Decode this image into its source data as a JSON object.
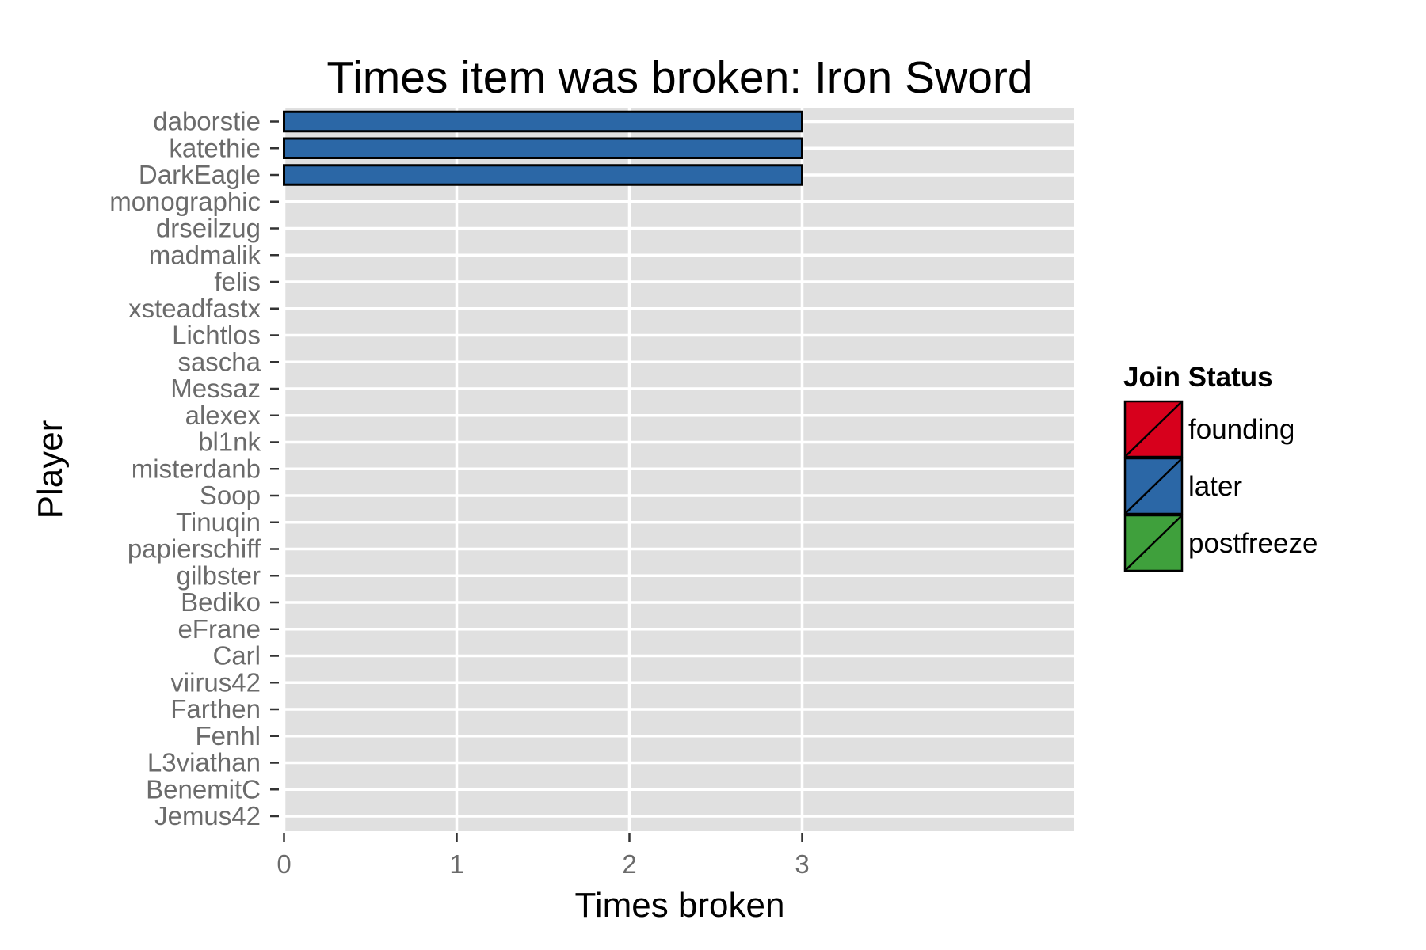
{
  "chart_data": {
    "type": "bar",
    "orientation": "horizontal",
    "title": "Times item was broken: Iron Sword",
    "xlabel": "Times broken",
    "ylabel": "Player",
    "xlim": [
      0,
      4.6
    ],
    "xticks": [
      0,
      1,
      2,
      3
    ],
    "grid": true,
    "categories": [
      "daborstie",
      "katethie",
      "DarkEagle",
      "monographic",
      "drseilzug",
      "madmalik",
      "felis",
      "xsteadfastx",
      "Lichtlos",
      "sascha",
      "Messaz",
      "alexex",
      "bl1nk",
      "misterdanb",
      "Soop",
      "Tinuqin",
      "papierschiff",
      "gilbster",
      "Bediko",
      "eFrane",
      "Carl",
      "viirus42",
      "Farthen",
      "Fenhl",
      "L3viathan",
      "BenemitC",
      "Jemus42"
    ],
    "values": [
      3,
      3,
      3,
      0,
      0,
      0,
      0,
      0,
      0,
      0,
      0,
      0,
      0,
      0,
      0,
      0,
      0,
      0,
      0,
      0,
      0,
      0,
      0,
      0,
      0,
      0,
      0
    ],
    "status": [
      "later",
      "later",
      "later",
      "later",
      "later",
      "later",
      "later",
      "later",
      "later",
      "later",
      "later",
      "later",
      "later",
      "later",
      "later",
      "later",
      "later",
      "later",
      "later",
      "later",
      "later",
      "later",
      "later",
      "later",
      "later",
      "later",
      "later"
    ],
    "legend": {
      "title": "Join Status",
      "placement": "right",
      "entries": [
        {
          "label": "founding",
          "color": "#d7001c"
        },
        {
          "label": "later",
          "color": "#2b67a6"
        },
        {
          "label": "postfreeze",
          "color": "#3fa03c"
        }
      ]
    },
    "colors": {
      "panel": "#e0e0e0",
      "gridline": "#ffffff",
      "bar_outline": "#000000",
      "tick_text": "#6b6b6b"
    }
  }
}
